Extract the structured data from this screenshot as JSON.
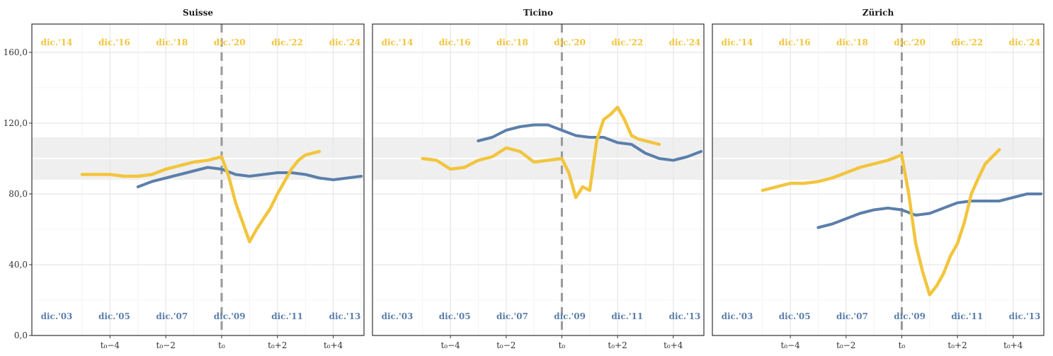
{
  "colors": {
    "series_a": "#5b7fab",
    "series_b": "#f2c53d",
    "grid": "#e6e6e6",
    "band": "#ebebeb",
    "t0_line": "#999999"
  },
  "chart_data": [
    {
      "type": "line",
      "title": "Suisse",
      "x": [
        -5,
        -4.5,
        -4,
        -3.5,
        -3,
        -2.5,
        -2,
        -1.5,
        -1,
        -0.5,
        0,
        0.25,
        0.5,
        0.75,
        1,
        1.25,
        1.5,
        1.75,
        2,
        2.25,
        2.5,
        2.75,
        3,
        3.5
      ],
      "ylim": [
        0,
        176
      ],
      "xlim": [
        -6.8,
        5.1
      ],
      "band": [
        88,
        112
      ],
      "reference_line": 100,
      "x_ticks": [
        -4,
        -2,
        0,
        2,
        4
      ],
      "x_tick_labels": [
        "t₀−4",
        "t₀−2",
        "t₀",
        "t₀+2",
        "t₀+4"
      ],
      "y_ticks": [
        0,
        40,
        80,
        120,
        160
      ],
      "y_tick_labels": [
        "0,0",
        "40,0",
        "80,0",
        "120,0",
        "160,0"
      ],
      "top_dates": [
        "dic.'14",
        "dic.'16",
        "dic.'18",
        "dic.'20",
        "dic.'22",
        "dic.'24"
      ],
      "bottom_dates": [
        "dic.'03",
        "dic.'05",
        "dic.'07",
        "dic.'09",
        "dic.'11",
        "dic.'13"
      ],
      "series": [
        {
          "color_key": "series_a",
          "x": [
            -3,
            -2.5,
            -2,
            -1.5,
            -1,
            -0.5,
            0,
            0.5,
            1,
            1.5,
            2,
            2.5,
            3,
            3.5,
            4,
            4.5,
            5
          ],
          "values": [
            84,
            87,
            89,
            91,
            93,
            95,
            94,
            91,
            90,
            91,
            92,
            92,
            91,
            89,
            88,
            89,
            90
          ]
        },
        {
          "color_key": "series_b",
          "x": [
            -5,
            -4.5,
            -4,
            -3.5,
            -3,
            -2.5,
            -2,
            -1.5,
            -1,
            -0.5,
            0,
            0.25,
            0.5,
            0.75,
            1,
            1.25,
            1.5,
            1.75,
            2,
            2.25,
            2.5,
            2.75,
            3,
            3.5
          ],
          "values": [
            91,
            91,
            91,
            90,
            90,
            91,
            94,
            96,
            98,
            99,
            101,
            90,
            75,
            64,
            53,
            60,
            66,
            72,
            80,
            87,
            94,
            99,
            102,
            104
          ]
        }
      ]
    },
    {
      "type": "line",
      "title": "Ticino",
      "ylim": [
        0,
        176
      ],
      "xlim": [
        -6.8,
        5.1
      ],
      "band": [
        88,
        112
      ],
      "reference_line": 100,
      "x_ticks": [
        -4,
        -2,
        0,
        2,
        4
      ],
      "x_tick_labels": [
        "t₀−4",
        "t₀−2",
        "t₀",
        "t₀+2",
        "t₀+4"
      ],
      "y_ticks": [
        0,
        40,
        80,
        120,
        160
      ],
      "top_dates": [
        "dic.'14",
        "dic.'16",
        "dic.'18",
        "dic.'20",
        "dic.'22",
        "dic.'24"
      ],
      "bottom_dates": [
        "dic.'03",
        "dic.'05",
        "dic.'07",
        "dic.'09",
        "dic.'11",
        "dic.'13"
      ],
      "series": [
        {
          "color_key": "series_a",
          "x": [
            -3,
            -2.5,
            -2,
            -1.5,
            -1,
            -0.5,
            0,
            0.5,
            1,
            1.5,
            2,
            2.5,
            3,
            3.5,
            4,
            4.5,
            5
          ],
          "values": [
            110,
            112,
            116,
            118,
            119,
            119,
            116,
            113,
            112,
            112,
            109,
            108,
            103,
            100,
            99,
            101,
            104
          ]
        },
        {
          "color_key": "series_b",
          "x": [
            -5,
            -4.5,
            -4,
            -3.5,
            -3,
            -2.5,
            -2,
            -1.5,
            -1,
            -0.5,
            0,
            0.25,
            0.5,
            0.75,
            1,
            1.25,
            1.5,
            1.75,
            2,
            2.25,
            2.5,
            2.75,
            3,
            3.5
          ],
          "values": [
            100,
            99,
            94,
            95,
            99,
            101,
            106,
            104,
            98,
            99,
            100,
            92,
            78,
            84,
            82,
            110,
            122,
            125,
            129,
            122,
            113,
            111,
            110,
            108
          ]
        }
      ]
    },
    {
      "type": "line",
      "title": "Zürich",
      "ylim": [
        0,
        176
      ],
      "xlim": [
        -6.8,
        5.1
      ],
      "band": [
        88,
        112
      ],
      "reference_line": 100,
      "x_ticks": [
        -4,
        -2,
        0,
        2,
        4
      ],
      "x_tick_labels": [
        "t₀−4",
        "t₀−2",
        "t₀",
        "t₀+2",
        "t₀+4"
      ],
      "y_ticks": [
        0,
        40,
        80,
        120,
        160
      ],
      "top_dates": [
        "dic.'14",
        "dic.'16",
        "dic.'18",
        "dic.'20",
        "dic.'22",
        "dic.'24"
      ],
      "bottom_dates": [
        "dic.'03",
        "dic.'05",
        "dic.'07",
        "dic.'09",
        "dic.'11",
        "dic.'13"
      ],
      "series": [
        {
          "color_key": "series_a",
          "x": [
            -3,
            -2.5,
            -2,
            -1.5,
            -1,
            -0.5,
            0,
            0.5,
            1,
            1.5,
            2,
            2.5,
            3,
            3.5,
            4,
            4.5,
            5
          ],
          "values": [
            61,
            63,
            66,
            69,
            71,
            72,
            71,
            68,
            69,
            72,
            75,
            76,
            76,
            76,
            78,
            80,
            80
          ]
        },
        {
          "color_key": "series_b",
          "x": [
            -5,
            -4.5,
            -4,
            -3.5,
            -3,
            -2.5,
            -2,
            -1.5,
            -1,
            -0.5,
            0,
            0.25,
            0.5,
            0.75,
            1,
            1.25,
            1.5,
            1.75,
            2,
            2.25,
            2.5,
            2.75,
            3,
            3.5
          ],
          "values": [
            82,
            84,
            86,
            86,
            87,
            89,
            92,
            95,
            97,
            99,
            102,
            80,
            52,
            36,
            23,
            28,
            35,
            45,
            52,
            64,
            80,
            89,
            97,
            105
          ]
        }
      ]
    }
  ]
}
